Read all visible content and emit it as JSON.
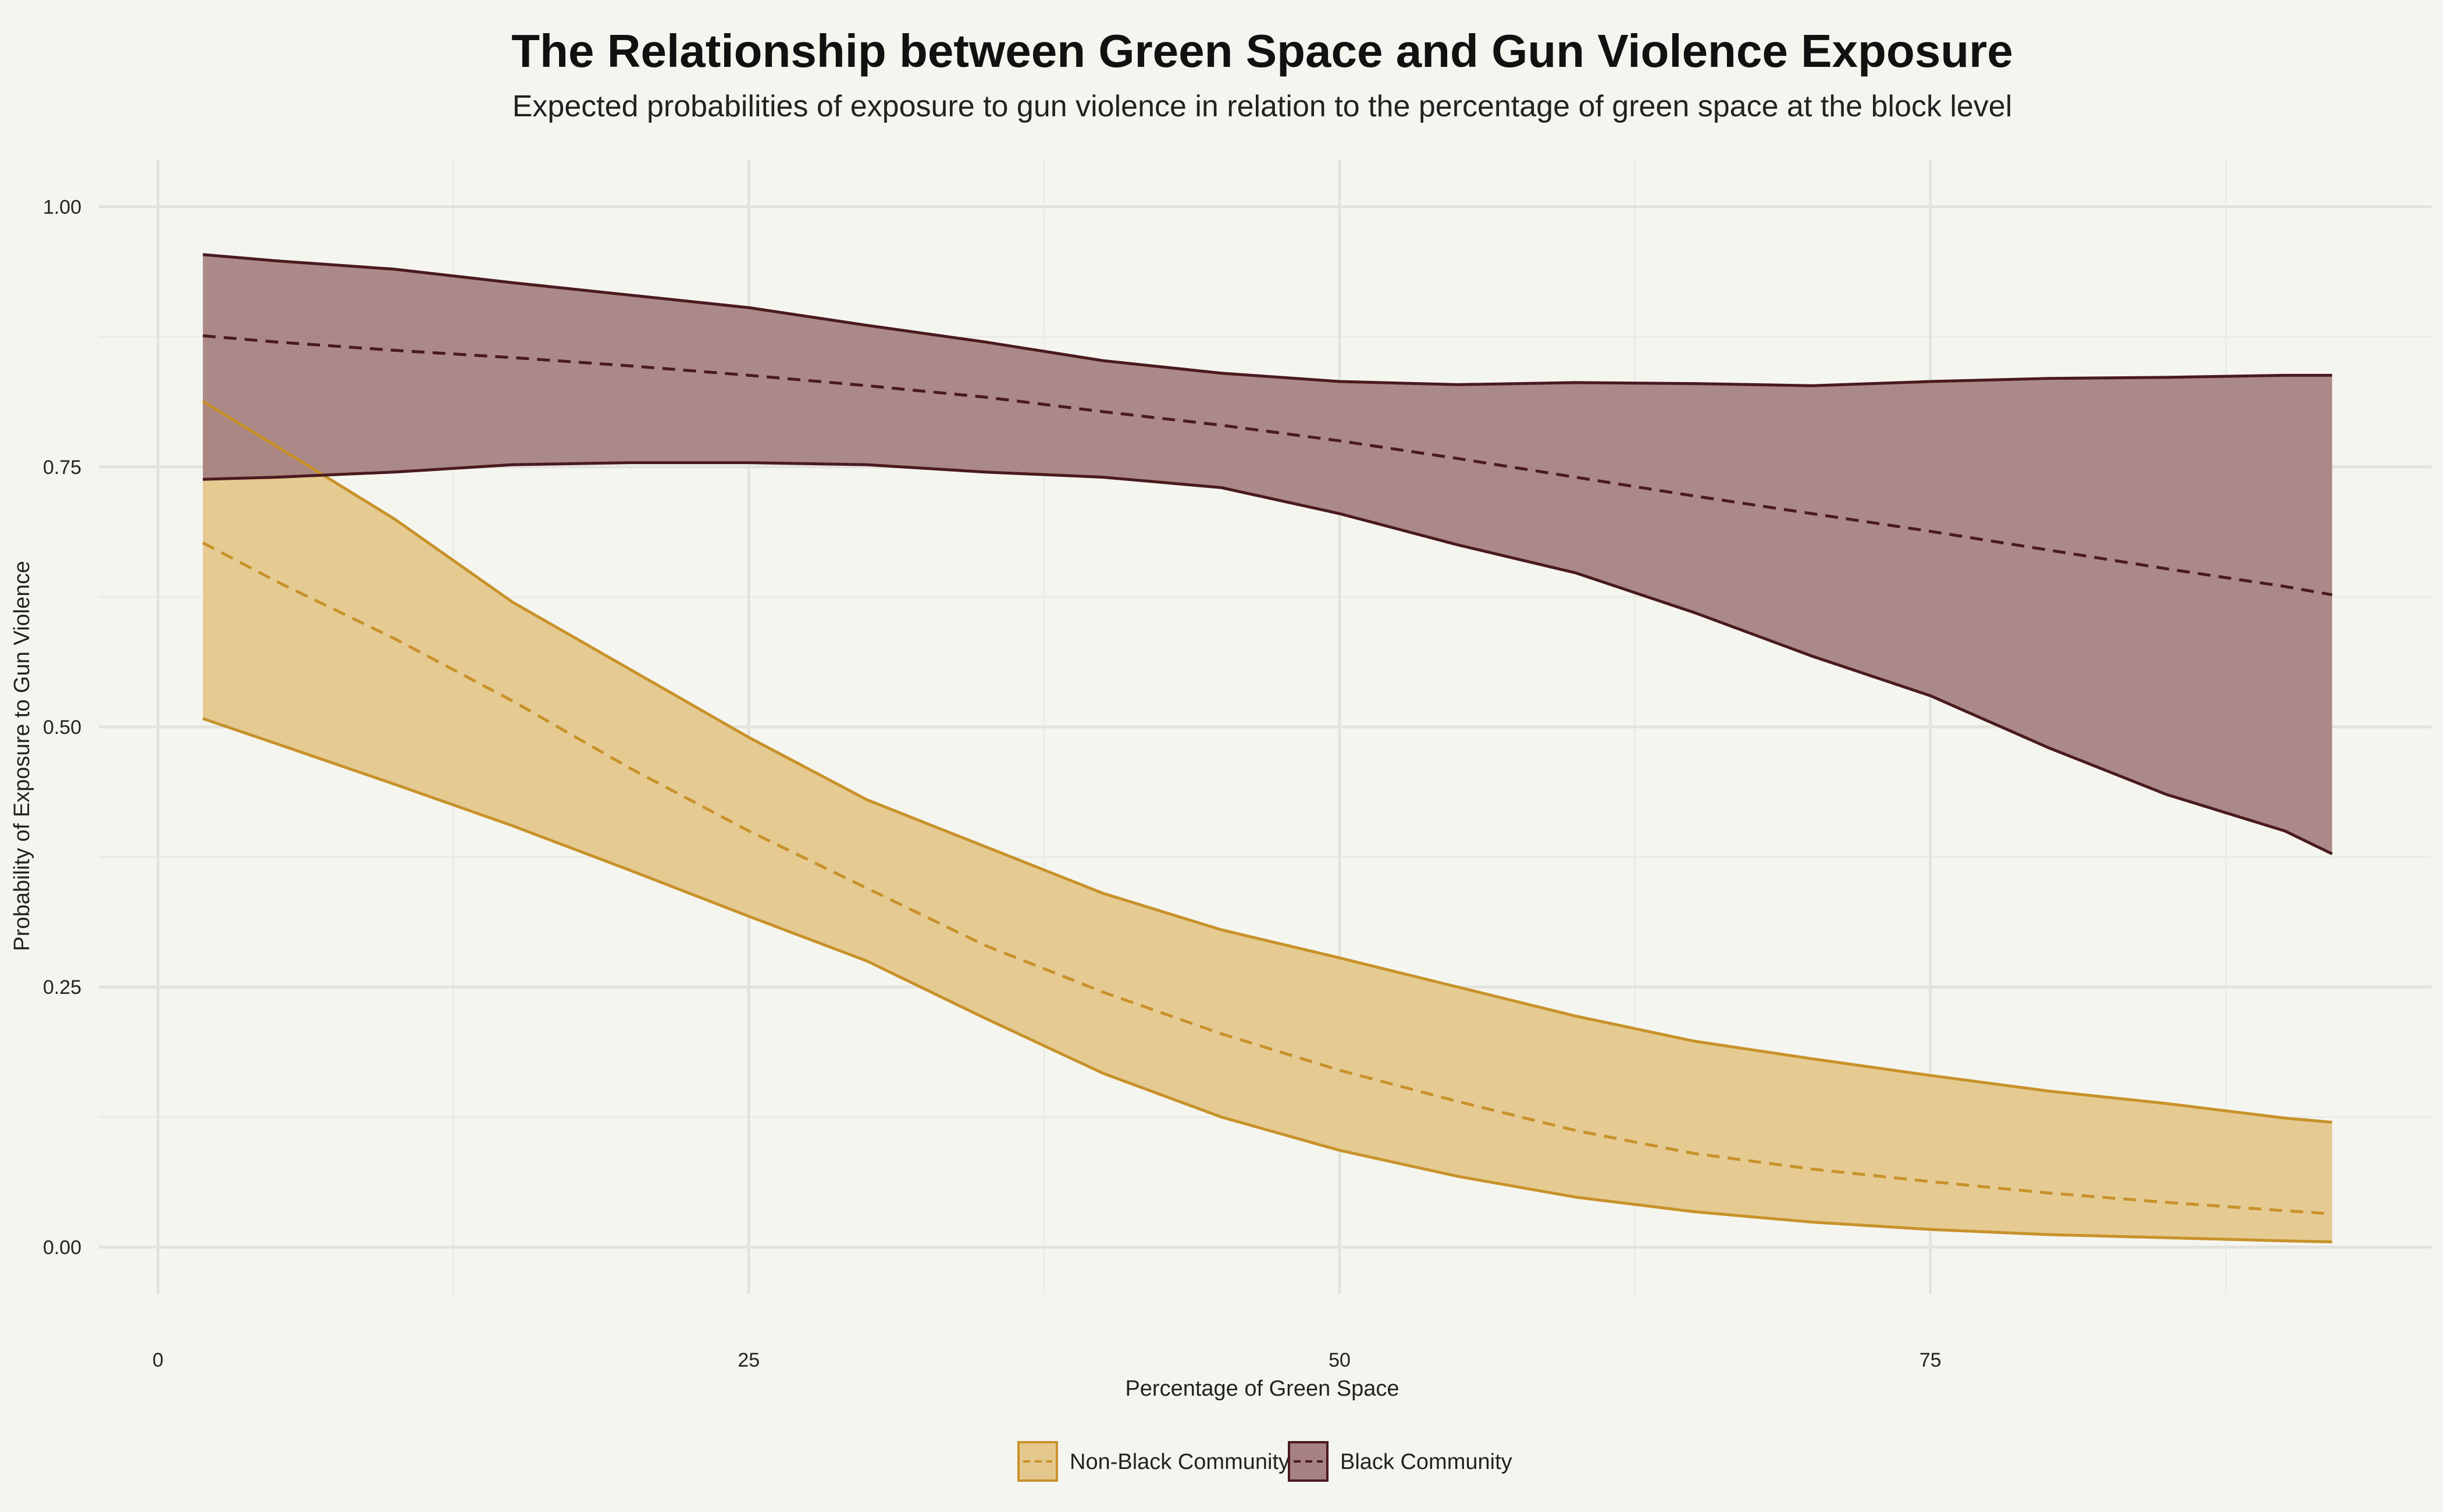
{
  "chart_data": {
    "type": "area",
    "title": "The Relationship between Green Space and Gun Violence Exposure",
    "subtitle": "Expected probabilities of exposure to gun violence in relation to the percentage of green space at the block level",
    "xlabel": "Percentage of Green Space",
    "ylabel": "Probability of Exposure to Gun Violence",
    "xlim": [
      -2.5,
      96.2
    ],
    "ylim": [
      -0.045,
      1.045
    ],
    "x_ticks": [
      0,
      25,
      50,
      75
    ],
    "x_tick_labels": [
      "0",
      "25",
      "50",
      "75"
    ],
    "y_ticks": [
      0,
      0.25,
      0.5,
      0.75,
      1
    ],
    "y_tick_labels": [
      "0.00",
      "0.25",
      "0.50",
      "0.75",
      "1.00"
    ],
    "grid": true,
    "legend_position": "bottom",
    "x": [
      1.9,
      5,
      10,
      15,
      20,
      25,
      30,
      35,
      40,
      45,
      50,
      55,
      60,
      65,
      70,
      75,
      80,
      85,
      90,
      92
    ],
    "series": [
      {
        "name": "Non-Black Community",
        "color": "#c8922a",
        "fill": "#e4c78c",
        "line_style": "dashed",
        "fit": [
          0.677,
          0.64,
          0.585,
          0.525,
          0.46,
          0.4,
          0.345,
          0.29,
          0.245,
          0.205,
          0.17,
          0.14,
          0.112,
          0.09,
          0.075,
          0.063,
          0.052,
          0.043,
          0.035,
          0.032
        ],
        "lower": [
          0.508,
          0.484,
          0.445,
          0.405,
          0.362,
          0.318,
          0.275,
          0.22,
          0.167,
          0.125,
          0.093,
          0.068,
          0.048,
          0.034,
          0.024,
          0.017,
          0.012,
          0.009,
          0.006,
          0.005
        ],
        "upper": [
          0.813,
          0.77,
          0.7,
          0.62,
          0.555,
          0.49,
          0.43,
          0.385,
          0.34,
          0.305,
          0.278,
          0.25,
          0.222,
          0.198,
          0.181,
          0.165,
          0.15,
          0.138,
          0.124,
          0.12
        ]
      },
      {
        "name": "Black Community",
        "color": "#4a1a1e",
        "fill": "#a68382",
        "line_style": "dashed",
        "fit": [
          0.876,
          0.87,
          0.862,
          0.855,
          0.847,
          0.838,
          0.828,
          0.817,
          0.803,
          0.79,
          0.775,
          0.758,
          0.74,
          0.722,
          0.705,
          0.688,
          0.67,
          0.652,
          0.635,
          0.627
        ],
        "lower": [
          0.738,
          0.74,
          0.745,
          0.752,
          0.754,
          0.754,
          0.752,
          0.745,
          0.74,
          0.73,
          0.705,
          0.675,
          0.648,
          0.61,
          0.568,
          0.53,
          0.48,
          0.435,
          0.4,
          0.378
        ],
        "upper": [
          0.954,
          0.948,
          0.94,
          0.927,
          0.915,
          0.903,
          0.886,
          0.87,
          0.852,
          0.84,
          0.832,
          0.829,
          0.831,
          0.83,
          0.828,
          0.832,
          0.835,
          0.836,
          0.838,
          0.838
        ]
      }
    ]
  }
}
